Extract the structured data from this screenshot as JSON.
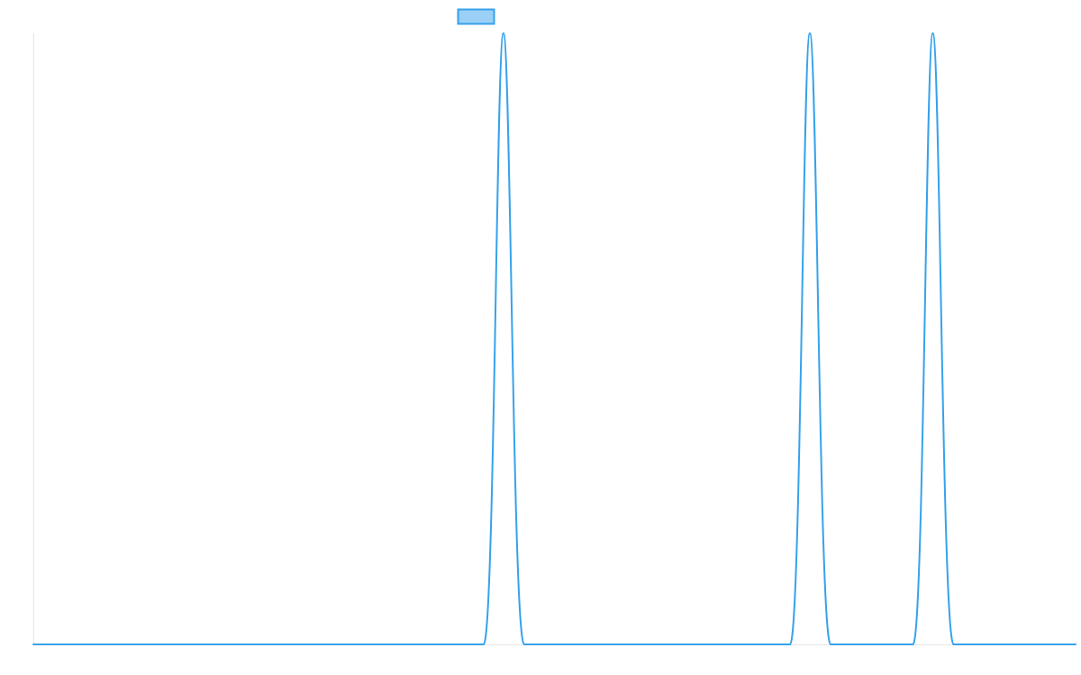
{
  "chart_data": {
    "type": "line",
    "title": "",
    "xlabel": "",
    "ylabel": "",
    "legend": {
      "placement": "top-center",
      "entries": [
        {
          "name": "",
          "color": "#36a2eb",
          "fill": "#9ad0f5"
        }
      ]
    },
    "grid": false,
    "xlim": [
      0,
      1000
    ],
    "ylim": [
      0,
      1
    ],
    "series": [
      {
        "name": "",
        "color": "#36a2eb",
        "points": [
          {
            "x": 0,
            "y": 0
          },
          {
            "x": 432,
            "y": 0
          },
          {
            "x": 451,
            "y": 1
          },
          {
            "x": 471,
            "y": 0
          },
          {
            "x": 726,
            "y": 0
          },
          {
            "x": 745,
            "y": 1
          },
          {
            "x": 765,
            "y": 0
          },
          {
            "x": 844,
            "y": 0
          },
          {
            "x": 863,
            "y": 1
          },
          {
            "x": 883,
            "y": 0
          },
          {
            "x": 1000,
            "y": 0
          }
        ]
      }
    ]
  }
}
